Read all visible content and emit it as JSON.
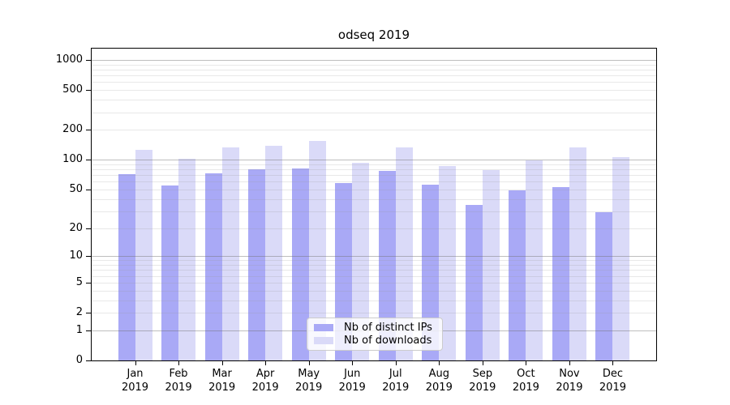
{
  "figure": {
    "title": "odseq 2019"
  },
  "chart_data": {
    "type": "bar",
    "title": "odseq 2019",
    "categories": [
      "Jan",
      "Feb",
      "Mar",
      "Apr",
      "May",
      "Jun",
      "Jul",
      "Aug",
      "Sep",
      "Oct",
      "Nov",
      "Dec"
    ],
    "year_label": "2019",
    "series": [
      {
        "name": "Nb of distinct IPs",
        "color": "#a9a9f6",
        "values": [
          72,
          55,
          73,
          80,
          82,
          58,
          77,
          56,
          35,
          49,
          53,
          29
        ]
      },
      {
        "name": "Nb of downloads",
        "color": "#dadaf8",
        "values": [
          125,
          103,
          132,
          137,
          154,
          94,
          134,
          86,
          79,
          98,
          134,
          107
        ]
      }
    ],
    "xlabel": "",
    "ylabel": "",
    "yscale": "log1p",
    "ylim": [
      0,
      1300
    ],
    "yticks": [
      0,
      1,
      2,
      5,
      10,
      20,
      50,
      100,
      200,
      500,
      1000
    ],
    "major_gridlines": [
      1,
      10,
      100,
      1000
    ],
    "minor_gridlines": [
      2,
      3,
      4,
      5,
      6,
      7,
      8,
      9,
      20,
      30,
      40,
      50,
      60,
      70,
      80,
      90,
      200,
      300,
      400,
      500,
      600,
      700,
      800,
      900
    ],
    "grid": "horizontal",
    "legend_position": "inside-bottom-center",
    "colors": {
      "major_grid": "rgba(110,110,110,0.45)",
      "minor_grid": "rgba(150,150,150,0.22)",
      "spine": "#000000",
      "text": "#000000",
      "background": "#ffffff"
    }
  }
}
